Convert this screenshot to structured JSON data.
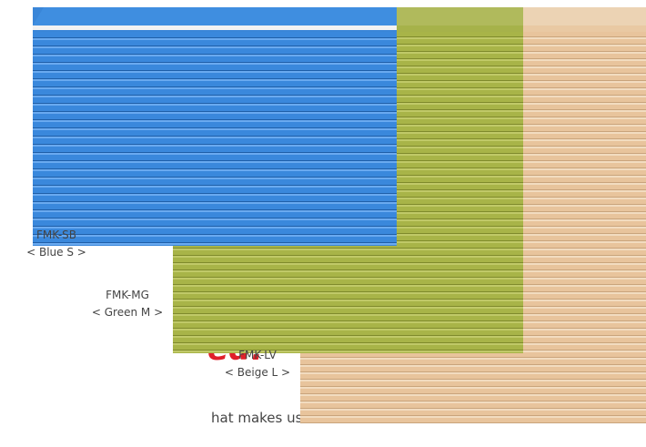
{
  "products": [
    {
      "code": "FMK-SB",
      "name": "< Blue S >"
    },
    {
      "code": "FMK-MG",
      "name": "< Green M >"
    },
    {
      "code": "FMK-LV",
      "name": "< Beige L >"
    }
  ],
  "headline_fragment": "ed!",
  "body_fragment": "hat makes use of neither"
}
